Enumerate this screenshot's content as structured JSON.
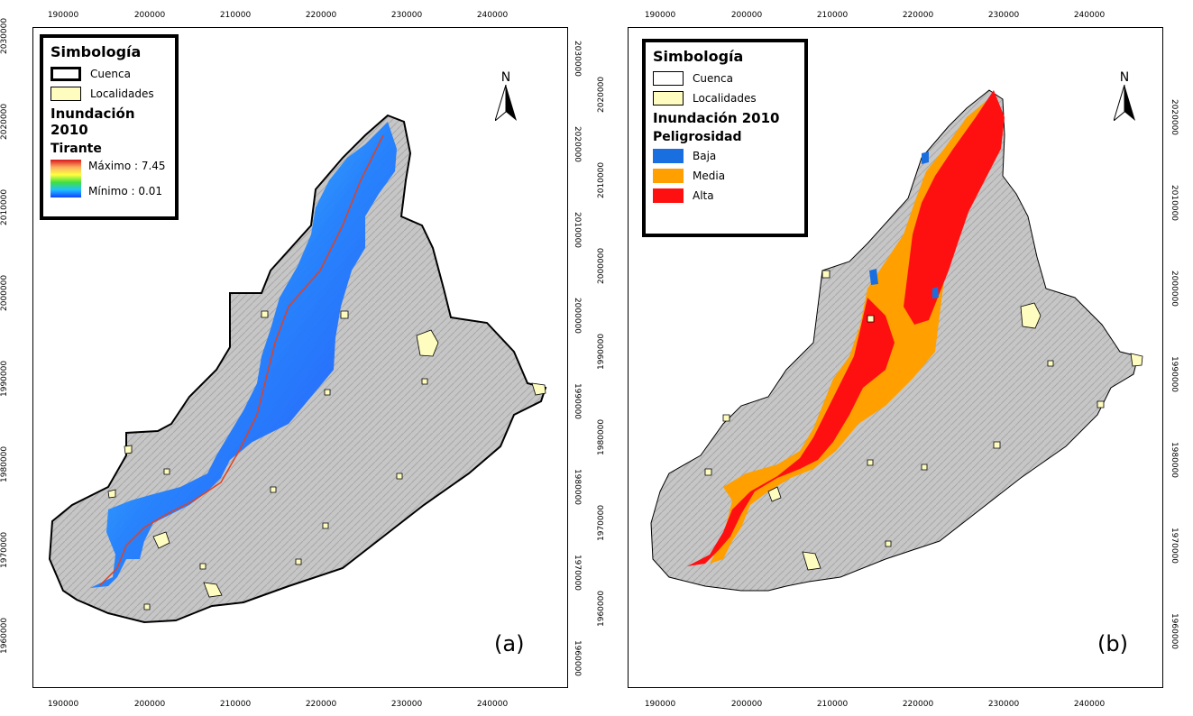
{
  "panels": [
    {
      "letter": "(a)",
      "legend": {
        "title": "Simbología",
        "items": [
          {
            "label": "Cuenca"
          },
          {
            "label": "Localidades"
          }
        ],
        "section_title": "Inundación 2010",
        "variable_title": "Tirante",
        "ramp_max": "Máximo : 7.45",
        "ramp_min": "Mínimo : 0.01"
      }
    },
    {
      "letter": "(b)",
      "legend": {
        "title": "Simbología",
        "items": [
          {
            "label": "Cuenca"
          },
          {
            "label": "Localidades"
          }
        ],
        "section_title": "Inundación 2010",
        "variable_title": "Peligrosidad",
        "classes": [
          {
            "label": "Baja",
            "color": "#1a6fe0"
          },
          {
            "label": "Media",
            "color": "#ffa000"
          },
          {
            "label": "Alta",
            "color": "#ff1010"
          }
        ]
      }
    }
  ],
  "north_label": "N",
  "x_ticks": [
    "190000",
    "200000",
    "210000",
    "220000",
    "230000",
    "240000"
  ],
  "y_ticks": [
    "2030000",
    "2020000",
    "2010000",
    "2000000",
    "1990000",
    "1980000",
    "1970000",
    "1960000"
  ],
  "colors": {
    "basin_fill": "#c8c8c8",
    "localidad_fill": "#fffcc0",
    "depth_low": "#1040ff",
    "depth_high": "#d7191c"
  }
}
